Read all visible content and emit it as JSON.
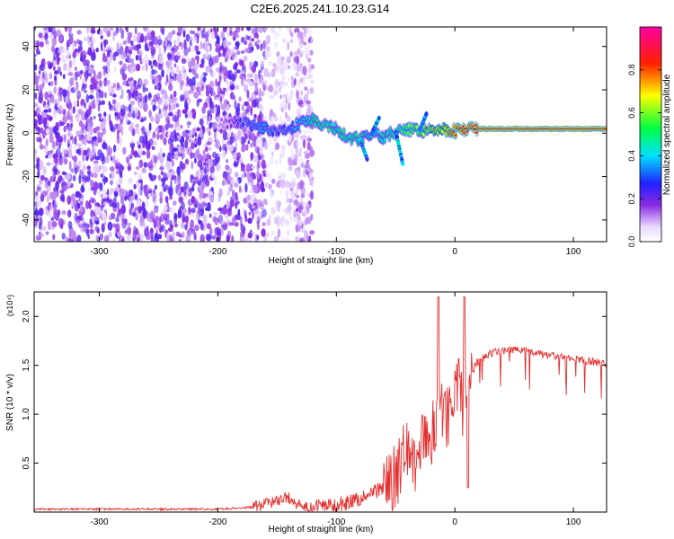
{
  "title": "C2E6.2025.241.10.23.G14",
  "chart_data": [
    {
      "type": "heatmap",
      "title": "C2E6.2025.241.10.23.G14",
      "xlabel": "Height of straight line (km)",
      "ylabel": "Frequency (Hz)",
      "xlim": [
        -355,
        128
      ],
      "ylim": [
        -50,
        49
      ],
      "xticks": [
        -300,
        -200,
        -100,
        0,
        100
      ],
      "xtick_labels": [
        "-300",
        "-200",
        "-100",
        "0",
        "100"
      ],
      "yticks": [
        -40,
        -20,
        0,
        20,
        40
      ],
      "ytick_labels": [
        "-40",
        "-20",
        "0",
        "20",
        "40"
      ],
      "colorbar": {
        "label": "Normalized spectral amplitude",
        "range": [
          0,
          1
        ],
        "ticks": [
          0.0,
          0.2,
          0.4,
          0.6,
          0.8
        ],
        "tick_labels": [
          "0.0",
          "0.2",
          "0.4",
          "0.6",
          "0.8"
        ],
        "colormap": "rainbow (white-violet-blue-cyan-green-yellow-red-magenta)"
      },
      "noise_region": {
        "x_range": [
          -355,
          -160
        ],
        "freq_range": [
          -50,
          49
        ],
        "amplitude": 0.1
      },
      "noise_fringe": {
        "x_range": [
          -160,
          -120
        ],
        "freq_range": [
          -50,
          49
        ],
        "amplitude": 0.05
      },
      "ridge": {
        "x": [
          -200,
          -190,
          -180,
          -170,
          -160,
          -150,
          -140,
          -130,
          -120,
          -110,
          -100,
          -90,
          -80,
          -70,
          -60,
          -50,
          -40,
          -30,
          -20,
          -10,
          0,
          20,
          40,
          60,
          80,
          100,
          120,
          128
        ],
        "freq": [
          5,
          5,
          5,
          4,
          2,
          1,
          2,
          5,
          6,
          4,
          2,
          -2,
          -3,
          0,
          -2,
          1,
          2,
          1,
          2,
          2,
          1,
          2,
          2,
          2,
          2,
          2,
          2,
          2
        ],
        "amplitude": [
          0.12,
          0.2,
          0.3,
          0.35,
          0.4,
          0.3,
          0.35,
          0.45,
          0.5,
          0.55,
          0.5,
          0.55,
          0.5,
          0.45,
          0.5,
          0.55,
          0.6,
          0.65,
          0.7,
          0.75,
          0.9,
          0.95,
          0.95,
          0.95,
          0.95,
          0.95,
          0.95,
          0.95
        ]
      },
      "ridge_spurs": [
        {
          "x": -80,
          "freq_end": -12
        },
        {
          "x": -50,
          "freq_end": -14
        },
        {
          "x": -70,
          "freq_end": 7
        },
        {
          "x": -30,
          "freq_end": 9
        }
      ]
    },
    {
      "type": "line",
      "title": "",
      "xlabel": "Height of straight line (km)",
      "ylabel": "SNR (10 * v/v)",
      "y_multiplier": "(x10⁴)",
      "xlim": [
        -355,
        128
      ],
      "ylim": [
        0,
        2.25
      ],
      "xticks": [
        -300,
        -200,
        -100,
        0,
        100
      ],
      "xtick_labels": [
        "-300",
        "-200",
        "-100",
        "0",
        "100"
      ],
      "yticks": [
        0.5,
        1.0,
        1.5,
        2.0
      ],
      "ytick_labels": [
        "0.5",
        "1.0",
        "1.5",
        "2.0"
      ],
      "color": "#e53030",
      "series": [
        {
          "name": "SNR",
          "x": [
            -355,
            -300,
            -250,
            -200,
            -170,
            -160,
            -150,
            -140,
            -130,
            -120,
            -110,
            -100,
            -90,
            -80,
            -70,
            -60,
            -50,
            -40,
            -30,
            -25,
            -20,
            -15,
            -12,
            -10,
            -5,
            0,
            5,
            8,
            10,
            15,
            20,
            30,
            40,
            50,
            60,
            70,
            80,
            90,
            100,
            110,
            120,
            128
          ],
          "y": [
            0.03,
            0.03,
            0.03,
            0.03,
            0.05,
            0.08,
            0.12,
            0.15,
            0.05,
            0.04,
            0.06,
            0.08,
            0.1,
            0.14,
            0.2,
            0.25,
            0.35,
            0.65,
            0.5,
            0.85,
            0.7,
            1.05,
            1.1,
            0.9,
            1.0,
            1.2,
            1.3,
            0.9,
            1.35,
            1.45,
            1.55,
            1.62,
            1.65,
            1.66,
            1.65,
            1.62,
            1.6,
            1.58,
            1.57,
            1.55,
            1.53,
            1.52
          ]
        }
      ],
      "spikes": [
        {
          "x": -14,
          "y": 2.2
        },
        {
          "x": 8,
          "y": 2.2
        },
        {
          "x": 11,
          "y": 0.25
        }
      ]
    }
  ]
}
